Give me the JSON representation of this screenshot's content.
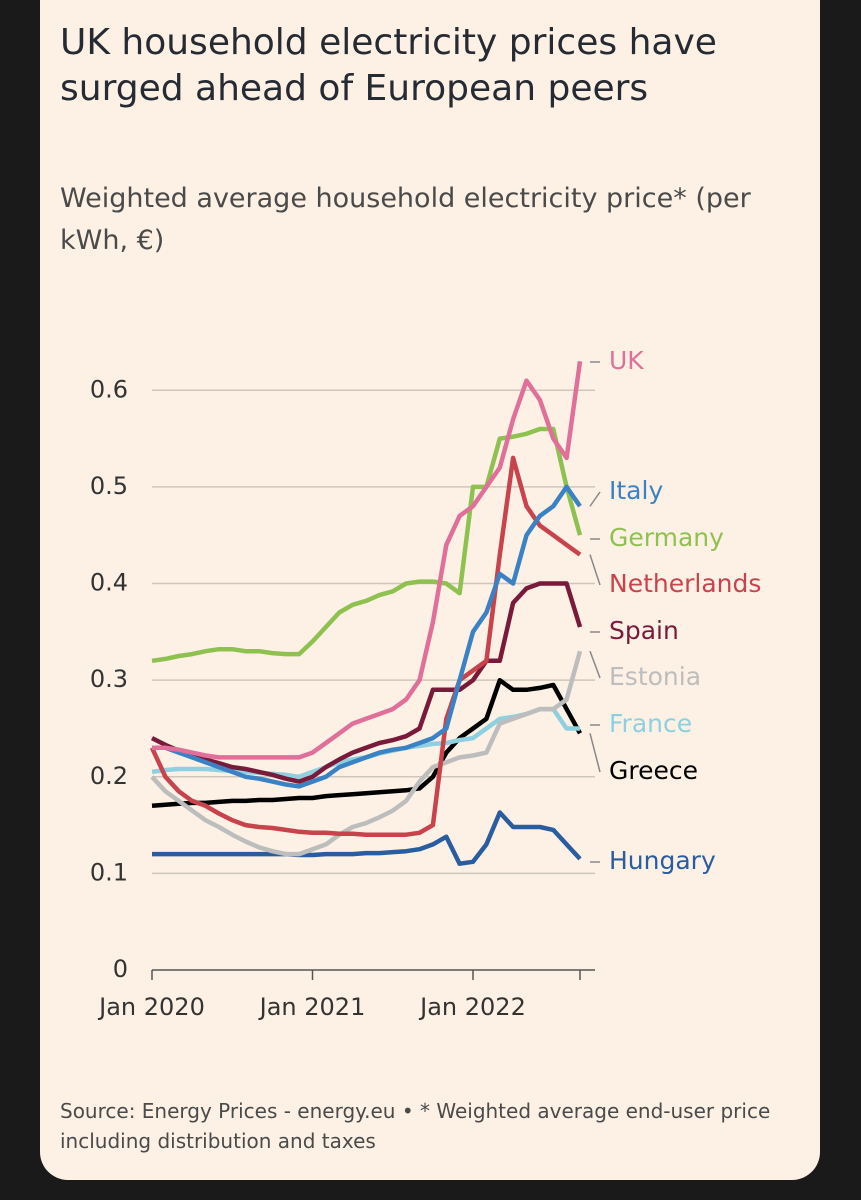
{
  "chart_data": {
    "type": "line",
    "title": "UK household electricity prices have surged ahead of European peers",
    "subtitle": "Weighted average household electricity price* (per kWh, €)",
    "source": "Source: Energy Prices - energy.eu • * Weighted average end-user price including distribution and taxes",
    "x": [
      "2020-01",
      "2020-02",
      "2020-03",
      "2020-04",
      "2020-05",
      "2020-06",
      "2020-07",
      "2020-08",
      "2020-09",
      "2020-10",
      "2020-11",
      "2020-12",
      "2021-01",
      "2021-02",
      "2021-03",
      "2021-04",
      "2021-05",
      "2021-06",
      "2021-07",
      "2021-08",
      "2021-09",
      "2021-10",
      "2021-11",
      "2021-12",
      "2022-01",
      "2022-02",
      "2022-03",
      "2022-04",
      "2022-05",
      "2022-06",
      "2022-07",
      "2022-08",
      "2022-09"
    ],
    "xlim": [
      "2020-01",
      "2022-09"
    ],
    "xticks": [
      {
        "value": "2020-01",
        "label": "Jan 2020"
      },
      {
        "value": "2021-01",
        "label": "Jan 2021"
      },
      {
        "value": "2022-01",
        "label": "Jan 2022"
      }
    ],
    "ylim": [
      0,
      0.65
    ],
    "yticks": [
      0,
      0.1,
      0.2,
      0.3,
      0.4,
      0.5,
      0.6
    ],
    "grid": true,
    "series": [
      {
        "name": "UK",
        "color": "#e0709a",
        "values": [
          0.23,
          0.23,
          0.228,
          0.225,
          0.222,
          0.22,
          0.22,
          0.22,
          0.22,
          0.22,
          0.22,
          0.22,
          0.225,
          0.235,
          0.245,
          0.255,
          0.26,
          0.265,
          0.27,
          0.28,
          0.3,
          0.36,
          0.44,
          0.47,
          0.48,
          0.5,
          0.52,
          0.57,
          0.61,
          0.59,
          0.55,
          0.53,
          0.63
        ]
      },
      {
        "name": "Italy",
        "color": "#3b82c4",
        "values": [
          0.23,
          0.23,
          0.225,
          0.22,
          0.215,
          0.21,
          0.205,
          0.2,
          0.198,
          0.195,
          0.192,
          0.19,
          0.195,
          0.2,
          0.21,
          0.215,
          0.22,
          0.225,
          0.228,
          0.23,
          0.235,
          0.24,
          0.25,
          0.3,
          0.35,
          0.37,
          0.41,
          0.4,
          0.45,
          0.47,
          0.48,
          0.5,
          0.48
        ]
      },
      {
        "name": "Germany",
        "color": "#8fc150",
        "values": [
          0.32,
          0.322,
          0.325,
          0.327,
          0.33,
          0.332,
          0.332,
          0.33,
          0.33,
          0.328,
          0.327,
          0.327,
          0.34,
          0.355,
          0.37,
          0.378,
          0.382,
          0.388,
          0.392,
          0.4,
          0.402,
          0.402,
          0.4,
          0.39,
          0.5,
          0.5,
          0.55,
          0.552,
          0.555,
          0.56,
          0.56,
          0.5,
          0.45
        ]
      },
      {
        "name": "Netherlands",
        "color": "#c8434b",
        "values": [
          0.23,
          0.2,
          0.185,
          0.175,
          0.17,
          0.162,
          0.155,
          0.15,
          0.148,
          0.147,
          0.145,
          0.143,
          0.142,
          0.142,
          0.141,
          0.141,
          0.14,
          0.14,
          0.14,
          0.14,
          0.142,
          0.15,
          0.26,
          0.3,
          0.31,
          0.32,
          0.43,
          0.53,
          0.48,
          0.46,
          0.45,
          0.44,
          0.43
        ]
      },
      {
        "name": "Spain",
        "color": "#7a1a3a",
        "values": [
          0.24,
          0.233,
          0.227,
          0.222,
          0.218,
          0.214,
          0.21,
          0.208,
          0.205,
          0.202,
          0.198,
          0.195,
          0.2,
          0.21,
          0.218,
          0.225,
          0.23,
          0.235,
          0.238,
          0.242,
          0.25,
          0.29,
          0.29,
          0.29,
          0.3,
          0.32,
          0.32,
          0.38,
          0.395,
          0.4,
          0.4,
          0.4,
          0.355
        ]
      },
      {
        "name": "Estonia",
        "color": "#bdbdbd",
        "values": [
          0.2,
          0.185,
          0.175,
          0.165,
          0.155,
          0.148,
          0.14,
          0.133,
          0.127,
          0.123,
          0.12,
          0.12,
          0.125,
          0.13,
          0.14,
          0.148,
          0.152,
          0.158,
          0.165,
          0.175,
          0.195,
          0.21,
          0.215,
          0.22,
          0.222,
          0.225,
          0.255,
          0.26,
          0.265,
          0.27,
          0.27,
          0.28,
          0.33
        ]
      },
      {
        "name": "France",
        "color": "#8fd0e0",
        "values": [
          0.205,
          0.207,
          0.208,
          0.208,
          0.208,
          0.207,
          0.206,
          0.205,
          0.204,
          0.203,
          0.202,
          0.2,
          0.205,
          0.21,
          0.215,
          0.218,
          0.22,
          0.224,
          0.227,
          0.23,
          0.232,
          0.234,
          0.235,
          0.238,
          0.24,
          0.25,
          0.26,
          0.262,
          0.265,
          0.27,
          0.27,
          0.25,
          0.25
        ]
      },
      {
        "name": "Greece",
        "color": "#000000",
        "values": [
          0.17,
          0.171,
          0.172,
          0.173,
          0.173,
          0.174,
          0.175,
          0.175,
          0.176,
          0.176,
          0.177,
          0.178,
          0.178,
          0.18,
          0.181,
          0.182,
          0.183,
          0.184,
          0.185,
          0.186,
          0.188,
          0.2,
          0.225,
          0.24,
          0.25,
          0.26,
          0.3,
          0.29,
          0.29,
          0.292,
          0.295,
          0.27,
          0.245
        ]
      },
      {
        "name": "Hungary",
        "color": "#2a5d9f",
        "values": [
          0.12,
          0.12,
          0.12,
          0.12,
          0.12,
          0.12,
          0.12,
          0.12,
          0.12,
          0.12,
          0.12,
          0.119,
          0.119,
          0.12,
          0.12,
          0.12,
          0.121,
          0.121,
          0.122,
          0.123,
          0.125,
          0.13,
          0.138,
          0.11,
          0.112,
          0.13,
          0.163,
          0.148,
          0.148,
          0.148,
          0.145,
          0.13,
          0.115
        ]
      }
    ]
  }
}
